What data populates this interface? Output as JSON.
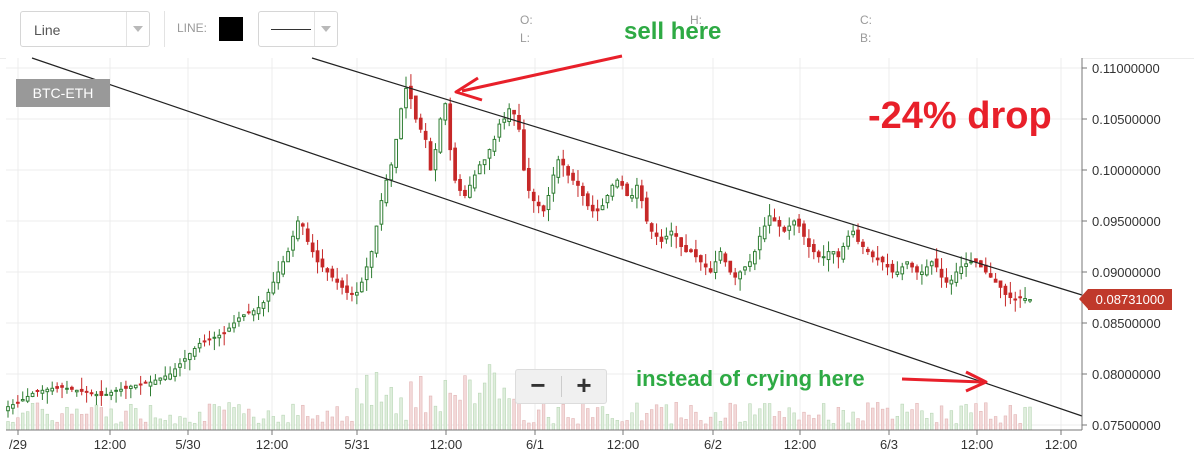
{
  "toolbar": {
    "chart_type": "Line",
    "line_label": "LINE:",
    "line_color": "#000000",
    "ohlc": {
      "o": "O:",
      "l": "L:",
      "h": "H:",
      "c": "C:",
      "b": "B:"
    }
  },
  "ticker": "BTC-ETH",
  "price_tag": "0.08731000",
  "zoom": {
    "minus": "−",
    "plus": "+"
  },
  "annotations": {
    "sell": "sell here",
    "drop": "-24% drop",
    "crying": "instead of crying here"
  },
  "colors": {
    "up": "#2e7d32",
    "down": "#c62828",
    "annotation_green": "#2eaa44",
    "annotation_red": "#e8202a",
    "price_tag": "#c0392b"
  },
  "chart_data": {
    "type": "candlestick",
    "xaxis_ticks": [
      "/29",
      "12:00",
      "5/30",
      "12:00",
      "5/31",
      "12:00",
      "6/1",
      "12:00",
      "6/2",
      "12:00",
      "6/3",
      "12:00",
      "12:00"
    ],
    "yaxis_ticks": [
      "0.11000000",
      "0.10500000",
      "0.10000000",
      "0.09500000",
      "0.09000000",
      "0.08500000",
      "0.08000000",
      "0.07500000"
    ],
    "ylim": [
      0.075,
      0.11
    ],
    "last_price": 0.08731,
    "grid": true,
    "close_series": [
      0.0768,
      0.077,
      0.0772,
      0.0775,
      0.0778,
      0.0781,
      0.0783,
      0.0784,
      0.0785,
      0.0786,
      0.0786,
      0.0787,
      0.0786,
      0.0785,
      0.0784,
      0.0783,
      0.0782,
      0.0781,
      0.078,
      0.0779,
      0.078,
      0.0782,
      0.0784,
      0.0785,
      0.0786,
      0.0788,
      0.0789,
      0.079,
      0.0791,
      0.0792,
      0.0794,
      0.0796,
      0.0798,
      0.08,
      0.0805,
      0.081,
      0.0815,
      0.082,
      0.0825,
      0.083,
      0.0832,
      0.0834,
      0.0836,
      0.0838,
      0.084,
      0.0845,
      0.085,
      0.0855,
      0.0858,
      0.086,
      0.0862,
      0.0865,
      0.087,
      0.088,
      0.089,
      0.09,
      0.091,
      0.092,
      0.0935,
      0.095,
      0.0945,
      0.093,
      0.092,
      0.091,
      0.0905,
      0.09,
      0.0895,
      0.089,
      0.0885,
      0.088,
      0.0878,
      0.088,
      0.089,
      0.0905,
      0.092,
      0.0945,
      0.097,
      0.099,
      0.1005,
      0.103,
      0.106,
      0.108,
      0.107,
      0.105,
      0.104,
      0.103,
      0.1,
      0.102,
      0.105,
      0.1065,
      0.102,
      0.099,
      0.098,
      0.0975,
      0.0985,
      0.0995,
      0.1005,
      0.101,
      0.102,
      0.103,
      0.1045,
      0.105,
      0.106,
      0.1055,
      0.104,
      0.1,
      0.098,
      0.097,
      0.0965,
      0.096,
      0.0975,
      0.0995,
      0.101,
      0.1005,
      0.0995,
      0.099,
      0.0985,
      0.0975,
      0.0965,
      0.096,
      0.096,
      0.0965,
      0.0975,
      0.0985,
      0.099,
      0.0985,
      0.0975,
      0.0975,
      0.0985,
      0.097,
      0.095,
      0.094,
      0.0935,
      0.093,
      0.0935,
      0.094,
      0.0935,
      0.0925,
      0.092,
      0.092,
      0.0915,
      0.091,
      0.0905,
      0.09,
      0.091,
      0.092,
      0.091,
      0.09,
      0.0895,
      0.09,
      0.0905,
      0.091,
      0.092,
      0.0935,
      0.0945,
      0.0955,
      0.095,
      0.0945,
      0.094,
      0.0945,
      0.095,
      0.0945,
      0.0935,
      0.0925,
      0.092,
      0.0915,
      0.0915,
      0.092,
      0.092,
      0.0915,
      0.0925,
      0.0935,
      0.094,
      0.093,
      0.0925,
      0.092,
      0.0915,
      0.0912,
      0.091,
      0.0905,
      0.09,
      0.09,
      0.0905,
      0.091,
      0.0905,
      0.09,
      0.09,
      0.0905,
      0.091,
      0.0905,
      0.0895,
      0.089,
      0.0892,
      0.09,
      0.0905,
      0.0908,
      0.091,
      0.091,
      0.0905,
      0.09,
      0.0895,
      0.089,
      0.0885,
      0.0878,
      0.0875,
      0.0873,
      0.0875,
      0.0874,
      0.0873
    ]
  }
}
